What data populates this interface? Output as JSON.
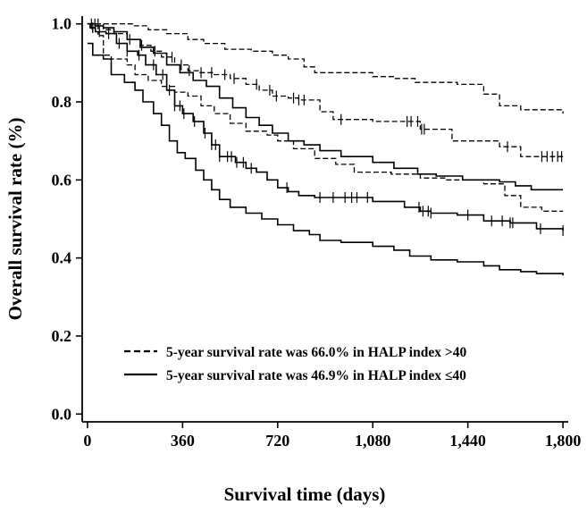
{
  "chart_data": {
    "type": "line",
    "subtype": "kaplan-meier",
    "title": "",
    "xlabel": "Survival time (days)",
    "ylabel": "Overall survival rate  (%)",
    "xlim": [
      -20,
      1820
    ],
    "ylim": [
      -0.02,
      1.02
    ],
    "x_ticks": [
      0,
      360,
      720,
      1080,
      1440,
      1800
    ],
    "x_tick_labels": [
      "0",
      "360",
      "720",
      "1,080",
      "1,440",
      "1,800"
    ],
    "y_ticks": [
      0.0,
      0.2,
      0.4,
      0.6,
      0.8,
      1.0
    ],
    "y_tick_labels": [
      "0.0",
      "0.2",
      "0.4",
      "0.6",
      "0.8",
      "1.0"
    ],
    "legend": {
      "position": "bottom-right",
      "entries": [
        {
          "style": "dashed",
          "label": "5-year survival rate was 66.0% in HALP index >40"
        },
        {
          "style": "solid",
          "label": "5-year survival rate was 46.9% in HALP index ≤40"
        }
      ]
    },
    "series": [
      {
        "name": "HALP index >40",
        "style": "dashed",
        "role": "survival",
        "points": [
          [
            0,
            1.0
          ],
          [
            30,
            1.0
          ],
          [
            60,
            0.985
          ],
          [
            100,
            0.975
          ],
          [
            150,
            0.96
          ],
          [
            200,
            0.945
          ],
          [
            240,
            0.93
          ],
          [
            280,
            0.915
          ],
          [
            330,
            0.895
          ],
          [
            380,
            0.88
          ],
          [
            420,
            0.875
          ],
          [
            480,
            0.87
          ],
          [
            540,
            0.86
          ],
          [
            600,
            0.845
          ],
          [
            650,
            0.83
          ],
          [
            700,
            0.815
          ],
          [
            760,
            0.81
          ],
          [
            800,
            0.805
          ],
          [
            880,
            0.775
          ],
          [
            930,
            0.755
          ],
          [
            1000,
            0.755
          ],
          [
            1080,
            0.75
          ],
          [
            1200,
            0.75
          ],
          [
            1260,
            0.73
          ],
          [
            1380,
            0.7
          ],
          [
            1560,
            0.685
          ],
          [
            1640,
            0.66
          ],
          [
            1800,
            0.66
          ]
        ],
        "censor_x": [
          15,
          28,
          40,
          160,
          205,
          255,
          320,
          355,
          385,
          430,
          470,
          520,
          555,
          640,
          690,
          715,
          780,
          800,
          820,
          960,
          1210,
          1225,
          1250,
          1265,
          1275,
          1590,
          1720,
          1740,
          1760,
          1780,
          1795
        ]
      },
      {
        "name": "HALP index >40 upper CI",
        "style": "dashed",
        "role": "ci",
        "points": [
          [
            0,
            1.0
          ],
          [
            130,
            1.0
          ],
          [
            170,
            0.995
          ],
          [
            230,
            0.985
          ],
          [
            300,
            0.975
          ],
          [
            380,
            0.96
          ],
          [
            440,
            0.95
          ],
          [
            520,
            0.935
          ],
          [
            620,
            0.93
          ],
          [
            700,
            0.92
          ],
          [
            760,
            0.91
          ],
          [
            820,
            0.89
          ],
          [
            860,
            0.875
          ],
          [
            1000,
            0.875
          ],
          [
            1080,
            0.865
          ],
          [
            1160,
            0.86
          ],
          [
            1240,
            0.85
          ],
          [
            1400,
            0.845
          ],
          [
            1500,
            0.82
          ],
          [
            1560,
            0.79
          ],
          [
            1640,
            0.78
          ],
          [
            1800,
            0.77
          ]
        ]
      },
      {
        "name": "HALP index >40 lower CI",
        "style": "dashed",
        "role": "ci",
        "points": [
          [
            0,
            1.0
          ],
          [
            20,
            0.98
          ],
          [
            40,
            0.97
          ],
          [
            60,
            0.92
          ],
          [
            90,
            0.91
          ],
          [
            150,
            0.895
          ],
          [
            180,
            0.87
          ],
          [
            230,
            0.855
          ],
          [
            280,
            0.84
          ],
          [
            330,
            0.825
          ],
          [
            380,
            0.815
          ],
          [
            430,
            0.79
          ],
          [
            480,
            0.77
          ],
          [
            540,
            0.745
          ],
          [
            600,
            0.725
          ],
          [
            680,
            0.715
          ],
          [
            720,
            0.7
          ],
          [
            780,
            0.68
          ],
          [
            860,
            0.655
          ],
          [
            940,
            0.64
          ],
          [
            1010,
            0.62
          ],
          [
            1080,
            0.62
          ],
          [
            1150,
            0.615
          ],
          [
            1260,
            0.605
          ],
          [
            1360,
            0.6
          ],
          [
            1500,
            0.59
          ],
          [
            1580,
            0.56
          ],
          [
            1640,
            0.53
          ],
          [
            1720,
            0.52
          ],
          [
            1800,
            0.52
          ]
        ]
      },
      {
        "name": "HALP index ≤40",
        "style": "solid",
        "role": "survival",
        "points": [
          [
            0,
            1.0
          ],
          [
            10,
            0.99
          ],
          [
            30,
            0.98
          ],
          [
            70,
            0.975
          ],
          [
            110,
            0.95
          ],
          [
            150,
            0.93
          ],
          [
            190,
            0.92
          ],
          [
            220,
            0.895
          ],
          [
            260,
            0.87
          ],
          [
            300,
            0.83
          ],
          [
            330,
            0.79
          ],
          [
            360,
            0.77
          ],
          [
            400,
            0.75
          ],
          [
            440,
            0.72
          ],
          [
            470,
            0.69
          ],
          [
            500,
            0.66
          ],
          [
            560,
            0.645
          ],
          [
            600,
            0.63
          ],
          [
            640,
            0.62
          ],
          [
            680,
            0.6
          ],
          [
            720,
            0.58
          ],
          [
            760,
            0.57
          ],
          [
            800,
            0.56
          ],
          [
            860,
            0.555
          ],
          [
            960,
            0.555
          ],
          [
            1080,
            0.545
          ],
          [
            1200,
            0.53
          ],
          [
            1260,
            0.52
          ],
          [
            1300,
            0.515
          ],
          [
            1400,
            0.51
          ],
          [
            1500,
            0.495
          ],
          [
            1600,
            0.49
          ],
          [
            1700,
            0.475
          ],
          [
            1800,
            0.47
          ]
        ],
        "censor_x": [
          20,
          45,
          80,
          120,
          150,
          195,
          250,
          285,
          310,
          330,
          350,
          365,
          405,
          445,
          470,
          485,
          500,
          530,
          545,
          565,
          590,
          620,
          755,
          880,
          930,
          975,
          1000,
          1020,
          1060,
          1255,
          1270,
          1290,
          1300,
          1440,
          1530,
          1570,
          1600,
          1610,
          1715,
          1800
        ]
      },
      {
        "name": "HALP index ≤40 upper CI",
        "style": "solid",
        "role": "ci",
        "points": [
          [
            0,
            1.0
          ],
          [
            30,
            0.995
          ],
          [
            60,
            0.99
          ],
          [
            100,
            0.98
          ],
          [
            150,
            0.96
          ],
          [
            200,
            0.94
          ],
          [
            250,
            0.925
          ],
          [
            300,
            0.895
          ],
          [
            350,
            0.875
          ],
          [
            400,
            0.855
          ],
          [
            450,
            0.84
          ],
          [
            500,
            0.81
          ],
          [
            550,
            0.785
          ],
          [
            600,
            0.76
          ],
          [
            650,
            0.74
          ],
          [
            700,
            0.72
          ],
          [
            760,
            0.7
          ],
          [
            820,
            0.69
          ],
          [
            880,
            0.675
          ],
          [
            960,
            0.66
          ],
          [
            1080,
            0.645
          ],
          [
            1160,
            0.63
          ],
          [
            1250,
            0.615
          ],
          [
            1320,
            0.61
          ],
          [
            1420,
            0.6
          ],
          [
            1560,
            0.595
          ],
          [
            1620,
            0.585
          ],
          [
            1680,
            0.575
          ],
          [
            1800,
            0.575
          ]
        ]
      },
      {
        "name": "HALP index ≤40 lower CI",
        "style": "solid",
        "role": "ci",
        "points": [
          [
            0,
            0.95
          ],
          [
            20,
            0.92
          ],
          [
            60,
            0.91
          ],
          [
            90,
            0.87
          ],
          [
            140,
            0.85
          ],
          [
            180,
            0.83
          ],
          [
            210,
            0.8
          ],
          [
            250,
            0.77
          ],
          [
            280,
            0.74
          ],
          [
            310,
            0.7
          ],
          [
            340,
            0.67
          ],
          [
            370,
            0.655
          ],
          [
            410,
            0.625
          ],
          [
            440,
            0.6
          ],
          [
            470,
            0.575
          ],
          [
            500,
            0.55
          ],
          [
            540,
            0.53
          ],
          [
            600,
            0.515
          ],
          [
            660,
            0.5
          ],
          [
            720,
            0.485
          ],
          [
            780,
            0.47
          ],
          [
            840,
            0.46
          ],
          [
            880,
            0.445
          ],
          [
            960,
            0.44
          ],
          [
            1080,
            0.43
          ],
          [
            1160,
            0.42
          ],
          [
            1220,
            0.405
          ],
          [
            1300,
            0.395
          ],
          [
            1400,
            0.39
          ],
          [
            1500,
            0.38
          ],
          [
            1560,
            0.37
          ],
          [
            1640,
            0.365
          ],
          [
            1700,
            0.36
          ],
          [
            1800,
            0.355
          ]
        ]
      }
    ]
  }
}
